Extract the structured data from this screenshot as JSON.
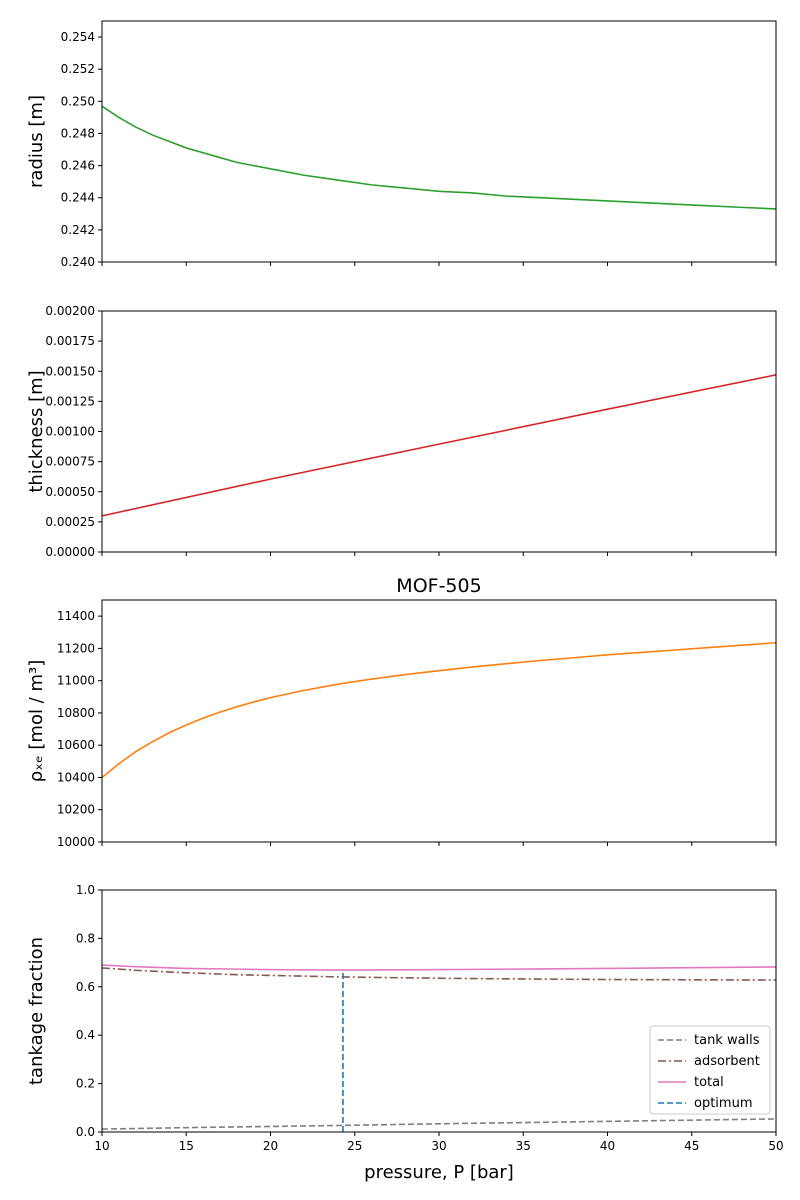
{
  "chart_data": [
    {
      "type": "line",
      "title": "",
      "ylabel": "radius [m]",
      "xlim": [
        10,
        50
      ],
      "ylim": [
        0.24,
        0.255
      ],
      "yticks": [
        "0.240",
        "0.242",
        "0.244",
        "0.246",
        "0.248",
        "0.250",
        "0.252",
        "0.254"
      ],
      "yticks_values": [
        0.24,
        0.242,
        0.244,
        0.246,
        0.248,
        0.25,
        0.252,
        0.254
      ],
      "series": [
        {
          "color": "#2ca02c",
          "style": "solid",
          "x": [
            10,
            11,
            12,
            13,
            14,
            15,
            16,
            17,
            18,
            19,
            20,
            22,
            24,
            26,
            28,
            30,
            32,
            34,
            36,
            38,
            40,
            42,
            44,
            46,
            48,
            50
          ],
          "y": [
            0.2497,
            0.249,
            0.2484,
            0.2479,
            0.2475,
            0.2471,
            0.2468,
            0.2465,
            0.2462,
            0.246,
            0.2458,
            0.2454,
            0.2451,
            0.2448,
            0.2446,
            0.2444,
            0.2443,
            0.2441,
            0.244,
            0.2439,
            0.2438,
            0.2437,
            0.2436,
            0.2435,
            0.2434,
            0.2433
          ]
        }
      ]
    },
    {
      "type": "line",
      "title": "",
      "ylabel": "thickness [m]",
      "xlim": [
        10,
        50
      ],
      "ylim": [
        0,
        0.002
      ],
      "yticks": [
        "0.00000",
        "0.00025",
        "0.00050",
        "0.00075",
        "0.00100",
        "0.00125",
        "0.00150",
        "0.00175",
        "0.00200"
      ],
      "yticks_values": [
        0,
        0.00025,
        0.0005,
        0.00075,
        0.001,
        0.00125,
        0.0015,
        0.00175,
        0.002
      ],
      "series": [
        {
          "color": "#d62728",
          "style": "solid",
          "x": [
            10,
            20,
            30,
            40,
            50
          ],
          "y": [
            0.0003,
            0.000605,
            0.000895,
            0.001185,
            0.00147
          ]
        }
      ]
    },
    {
      "type": "line",
      "title": "MOF-505",
      "ylabel": "ρₓₑ [mol / m³]",
      "xlim": [
        10,
        50
      ],
      "ylim": [
        10000,
        11500
      ],
      "yticks": [
        "10000",
        "10200",
        "10400",
        "10600",
        "10800",
        "11000",
        "11200",
        "11400"
      ],
      "yticks_values": [
        10000,
        10200,
        10400,
        10600,
        10800,
        11000,
        11200,
        11400
      ],
      "series": [
        {
          "color": "#ff7f0e",
          "style": "solid",
          "x": [
            10,
            11,
            12,
            13,
            14,
            15,
            16,
            17,
            18,
            19,
            20,
            22,
            24,
            26,
            28,
            30,
            32,
            34,
            36,
            38,
            40,
            42,
            44,
            46,
            48,
            50
          ],
          "y": [
            10400,
            10485,
            10560,
            10622,
            10678,
            10725,
            10768,
            10805,
            10838,
            10868,
            10895,
            10940,
            10978,
            11010,
            11038,
            11062,
            11085,
            11105,
            11125,
            11142,
            11160,
            11175,
            11190,
            11205,
            11220,
            11235
          ]
        }
      ]
    },
    {
      "type": "line",
      "title": "",
      "xlabel": "pressure, P [bar]",
      "ylabel": "tankage fraction",
      "xlim": [
        10,
        50
      ],
      "ylim": [
        0,
        1
      ],
      "xticks": [
        "10",
        "15",
        "20",
        "25",
        "30",
        "35",
        "40",
        "45",
        "50"
      ],
      "xticks_values": [
        10,
        15,
        20,
        25,
        30,
        35,
        40,
        45,
        50
      ],
      "yticks": [
        "0.0",
        "0.2",
        "0.4",
        "0.6",
        "0.8",
        "1.0"
      ],
      "yticks_values": [
        0,
        0.2,
        0.4,
        0.6,
        0.8,
        1.0
      ],
      "legend_position": "lower-right",
      "series": [
        {
          "name": "tank walls",
          "color": "#7f7f7f",
          "style": "dashed",
          "x": [
            10,
            15,
            20,
            25,
            30,
            35,
            40,
            45,
            50
          ],
          "y": [
            0.012,
            0.018,
            0.023,
            0.028,
            0.034,
            0.039,
            0.044,
            0.049,
            0.054
          ]
        },
        {
          "name": "adsorbent",
          "color": "#8c564b",
          "style": "dashdot",
          "x": [
            10,
            12,
            15,
            18,
            20,
            24,
            28,
            32,
            36,
            40,
            45,
            50
          ],
          "y": [
            0.678,
            0.668,
            0.658,
            0.65,
            0.647,
            0.641,
            0.637,
            0.634,
            0.632,
            0.63,
            0.629,
            0.628
          ]
        },
        {
          "name": "total",
          "color": "#e377c2",
          "style": "solid",
          "x": [
            10,
            12,
            15,
            18,
            20,
            24,
            28,
            32,
            36,
            40,
            45,
            50
          ],
          "y": [
            0.69,
            0.683,
            0.676,
            0.673,
            0.671,
            0.669,
            0.67,
            0.672,
            0.674,
            0.676,
            0.679,
            0.682
          ]
        },
        {
          "name": "optimum",
          "color": "#1f77b4",
          "style": "dashed",
          "x": [
            24.3,
            24.3
          ],
          "y": [
            0.0,
            0.669
          ]
        }
      ]
    }
  ]
}
